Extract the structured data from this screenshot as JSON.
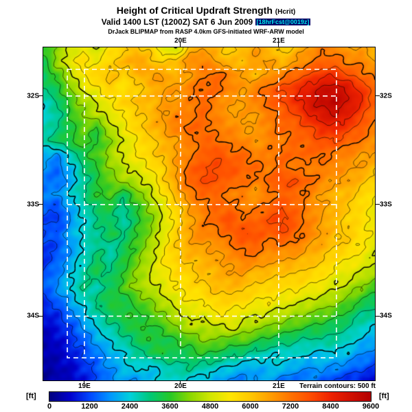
{
  "header": {
    "title": "Height of Critical Updraft Strength",
    "title_suffix": "(Hcrit)",
    "valid_line": "Valid 1400 LST (1200Z) SAT 6 Jun 2009",
    "forecast_tag": "[18hrFcst@0019z]",
    "model_line": "DrJack BLIPMAP from RASP 4.0km GFS-initiated WRF-ARW model"
  },
  "map": {
    "top_labels": [
      {
        "text": "20E",
        "x": 0.414
      },
      {
        "text": "21E",
        "x": 0.71
      }
    ],
    "bottom_labels": [
      {
        "text": "19E",
        "x": 0.124
      },
      {
        "text": "20E",
        "x": 0.414
      },
      {
        "text": "21E",
        "x": 0.71
      }
    ],
    "left_labels": [
      {
        "text": "32S",
        "y": 0.146
      },
      {
        "text": "33S",
        "y": 0.472
      },
      {
        "text": "34S",
        "y": 0.807
      }
    ],
    "right_labels": [
      {
        "text": "32S",
        "y": 0.146
      },
      {
        "text": "33S",
        "y": 0.472
      },
      {
        "text": "34S",
        "y": 0.807
      }
    ],
    "grid": {
      "vlines": [
        0.124,
        0.414,
        0.71
      ],
      "hlines": [
        0.146,
        0.472,
        0.807
      ],
      "dash_rect": [
        0.0725,
        0.066,
        0.884,
        0.932
      ],
      "gridline_color": "#ffffff"
    },
    "note": "Terrain contours: 500 ft"
  },
  "colorbar": {
    "unit": "[ft]",
    "min": 0,
    "max": 9600,
    "ticks": [
      "0",
      "1200",
      "2400",
      "3600",
      "4800",
      "6000",
      "7200",
      "8400",
      "9600"
    ]
  },
  "chart_data": {
    "type": "heatmap",
    "title": "Height of Critical Updraft Strength (Hcrit)",
    "units": "ft",
    "zlim": [
      0,
      9600
    ],
    "x_ticks": [
      "19E",
      "20E",
      "21E"
    ],
    "y_ticks": [
      "32S",
      "33S",
      "34S"
    ],
    "legend_position": "bottom",
    "grid_shape": [
      26,
      26
    ],
    "values": [
      [
        3600,
        4200,
        4800,
        5200,
        4800,
        5400,
        5800,
        6200,
        5800,
        5000,
        4600,
        6200,
        6600,
        6200,
        5800,
        6200,
        6600,
        6200,
        5800,
        6200,
        6600,
        7000,
        7000,
        6600,
        6600,
        6200
      ],
      [
        3400,
        4400,
        5200,
        5600,
        5200,
        5800,
        6200,
        6600,
        6200,
        5800,
        6200,
        6800,
        7000,
        6600,
        6200,
        6200,
        6600,
        6600,
        6200,
        6600,
        7000,
        7400,
        7400,
        7000,
        7000,
        6600
      ],
      [
        3200,
        3800,
        4600,
        5400,
        5800,
        6200,
        5800,
        6200,
        6600,
        6600,
        6200,
        6600,
        7000,
        7400,
        7000,
        6600,
        6200,
        6600,
        7000,
        7400,
        7800,
        8200,
        8200,
        7800,
        7400,
        7000
      ],
      [
        3000,
        3400,
        4200,
        5000,
        5400,
        5800,
        5400,
        5800,
        6200,
        6600,
        6600,
        7000,
        7400,
        7400,
        7000,
        6600,
        7000,
        7400,
        7800,
        8200,
        8600,
        9000,
        9200,
        8800,
        8200,
        7400
      ],
      [
        2600,
        3000,
        3800,
        4400,
        4800,
        5400,
        5800,
        6200,
        6200,
        6600,
        6600,
        7000,
        7400,
        7000,
        6600,
        6600,
        7000,
        7400,
        7800,
        8200,
        8800,
        9200,
        9400,
        9000,
        8400,
        7600
      ],
      [
        2400,
        2800,
        3600,
        4200,
        4600,
        5000,
        5400,
        5800,
        6200,
        6600,
        7000,
        7000,
        7400,
        7000,
        6600,
        6600,
        6600,
        7000,
        7400,
        7800,
        8400,
        8800,
        9000,
        8600,
        8000,
        7200
      ],
      [
        2600,
        3000,
        3400,
        4000,
        3600,
        4600,
        5200,
        5800,
        6200,
        6600,
        7000,
        7400,
        7400,
        7000,
        7000,
        6600,
        6600,
        7000,
        7400,
        7400,
        7800,
        8200,
        8400,
        8000,
        7600,
        7000
      ],
      [
        2800,
        3200,
        3600,
        3800,
        3400,
        4200,
        4800,
        5400,
        5800,
        6200,
        6600,
        7000,
        7400,
        7400,
        7000,
        7000,
        6600,
        7000,
        7000,
        7400,
        7400,
        7800,
        7800,
        7400,
        7200,
        6800
      ],
      [
        2000,
        1800,
        2600,
        3400,
        3800,
        4400,
        5000,
        5400,
        5800,
        6200,
        6600,
        7000,
        7400,
        7800,
        7400,
        7400,
        7000,
        7000,
        7400,
        7400,
        7400,
        7400,
        7000,
        7000,
        6600,
        6600
      ],
      [
        1800,
        1400,
        2200,
        3000,
        3600,
        4200,
        4600,
        5000,
        5400,
        5800,
        6600,
        7400,
        7800,
        7800,
        7800,
        7400,
        7400,
        7000,
        7400,
        7000,
        7000,
        7000,
        7000,
        6600,
        6600,
        6200
      ],
      [
        1600,
        1400,
        2000,
        2800,
        3400,
        4000,
        4400,
        4600,
        5000,
        5800,
        6600,
        7400,
        7800,
        7800,
        7400,
        7400,
        7000,
        7400,
        7800,
        7800,
        7400,
        7000,
        6600,
        6600,
        6200,
        5800
      ],
      [
        1600,
        1800,
        2400,
        3000,
        3600,
        3800,
        3200,
        4000,
        4600,
        5400,
        6200,
        7000,
        7400,
        7400,
        7000,
        7000,
        6600,
        7000,
        7400,
        7400,
        7000,
        6600,
        6200,
        6200,
        5800,
        5400
      ],
      [
        1400,
        1200,
        2000,
        2600,
        3200,
        3400,
        2800,
        3600,
        4200,
        5000,
        5800,
        6600,
        7000,
        7400,
        7400,
        7000,
        7000,
        7400,
        7800,
        7400,
        7000,
        6600,
        6400,
        6000,
        5600,
        5200
      ],
      [
        1200,
        1000,
        1800,
        2400,
        3000,
        3200,
        2600,
        3400,
        4000,
        4800,
        5600,
        6400,
        7000,
        7400,
        7800,
        7400,
        7400,
        7800,
        8000,
        7600,
        7000,
        6600,
        6200,
        5800,
        5600,
        5200
      ],
      [
        1200,
        1400,
        2000,
        2600,
        2800,
        3400,
        3000,
        3600,
        4200,
        5000,
        5800,
        6600,
        7000,
        7000,
        7400,
        7800,
        7800,
        7400,
        7800,
        7400,
        7000,
        6600,
        6200,
        6000,
        5600,
        5200
      ],
      [
        1000,
        1200,
        1800,
        2400,
        3000,
        2600,
        3200,
        3800,
        4400,
        5200,
        6000,
        6400,
        6600,
        6600,
        7000,
        7400,
        7400,
        7000,
        7000,
        7000,
        6600,
        6400,
        6000,
        5800,
        5400,
        5000
      ],
      [
        1000,
        1400,
        2000,
        2600,
        3200,
        2800,
        3400,
        4000,
        4600,
        5400,
        5800,
        6200,
        6200,
        6600,
        6600,
        7000,
        7000,
        6600,
        6600,
        6400,
        6200,
        6000,
        5600,
        5400,
        5200,
        4800
      ],
      [
        1200,
        1600,
        2200,
        2800,
        3400,
        3000,
        3600,
        4200,
        4800,
        5200,
        5600,
        5800,
        6200,
        6200,
        6600,
        6600,
        6200,
        6200,
        6000,
        6000,
        5800,
        5600,
        5200,
        5000,
        4800,
        4400
      ],
      [
        1400,
        1800,
        2400,
        3000,
        2600,
        3200,
        3800,
        4400,
        4600,
        5000,
        5400,
        5600,
        5800,
        6200,
        6200,
        6200,
        5800,
        5800,
        5600,
        5600,
        5400,
        5200,
        4800,
        4600,
        4200,
        3800
      ],
      [
        1000,
        1400,
        2000,
        2600,
        3000,
        3600,
        3200,
        3800,
        4200,
        4600,
        5000,
        5400,
        5400,
        5800,
        5800,
        5800,
        5400,
        5400,
        5200,
        5000,
        4800,
        4600,
        4400,
        4000,
        3600,
        3200
      ],
      [
        800,
        1000,
        1600,
        2200,
        2800,
        3200,
        3600,
        3400,
        3800,
        4200,
        4600,
        5000,
        5000,
        5400,
        5400,
        5000,
        5000,
        4800,
        4600,
        4400,
        4200,
        4000,
        3800,
        3400,
        3000,
        2800
      ],
      [
        600,
        800,
        1200,
        1800,
        2400,
        2800,
        3200,
        3600,
        3400,
        3800,
        4200,
        4600,
        4600,
        4600,
        5000,
        4600,
        4400,
        4200,
        4000,
        3800,
        3600,
        3400,
        3200,
        3000,
        2600,
        2400
      ],
      [
        400,
        600,
        1000,
        1400,
        2000,
        2400,
        2800,
        3200,
        3600,
        3200,
        3600,
        3800,
        4200,
        4200,
        3800,
        4000,
        3600,
        3400,
        3200,
        3000,
        2800,
        3000,
        2800,
        2600,
        2200,
        2000
      ],
      [
        300,
        500,
        800,
        1200,
        1600,
        2000,
        2400,
        2800,
        3200,
        3600,
        3200,
        3400,
        3600,
        3400,
        3200,
        3000,
        2800,
        2600,
        2400,
        2600,
        2400,
        2200,
        2400,
        2200,
        1800,
        1600
      ],
      [
        300,
        400,
        600,
        1000,
        1400,
        1800,
        2200,
        2600,
        2200,
        2600,
        2800,
        3000,
        2800,
        2600,
        2400,
        2200,
        2000,
        2200,
        2400,
        2000,
        1800,
        2000,
        1800,
        1600,
        1400,
        1200
      ],
      [
        200,
        300,
        500,
        800,
        1200,
        1600,
        2000,
        1800,
        2200,
        2400,
        2600,
        2400,
        2200,
        2000,
        1800,
        1600,
        1800,
        2000,
        1600,
        1400,
        1600,
        1400,
        1200,
        1000,
        800,
        600
      ]
    ],
    "colormap": [
      [
        0,
        "#000080"
      ],
      [
        600,
        "#0000cc"
      ],
      [
        1200,
        "#0048ff"
      ],
      [
        1800,
        "#0096ff"
      ],
      [
        2400,
        "#00d2dc"
      ],
      [
        3000,
        "#00c878"
      ],
      [
        3600,
        "#28c828"
      ],
      [
        4200,
        "#8cd800"
      ],
      [
        4800,
        "#d2e600"
      ],
      [
        5400,
        "#ffe600"
      ],
      [
        6000,
        "#ffc800"
      ],
      [
        6600,
        "#ff9e00"
      ],
      [
        7200,
        "#ff7300"
      ],
      [
        7800,
        "#ff4d00"
      ],
      [
        8400,
        "#ee2200"
      ],
      [
        9600,
        "#b40000"
      ]
    ],
    "contours": {
      "min": 1200,
      "max": 9000,
      "interval": 600,
      "bold_every": 2400,
      "note": "Terrain contours: 500 ft"
    }
  }
}
